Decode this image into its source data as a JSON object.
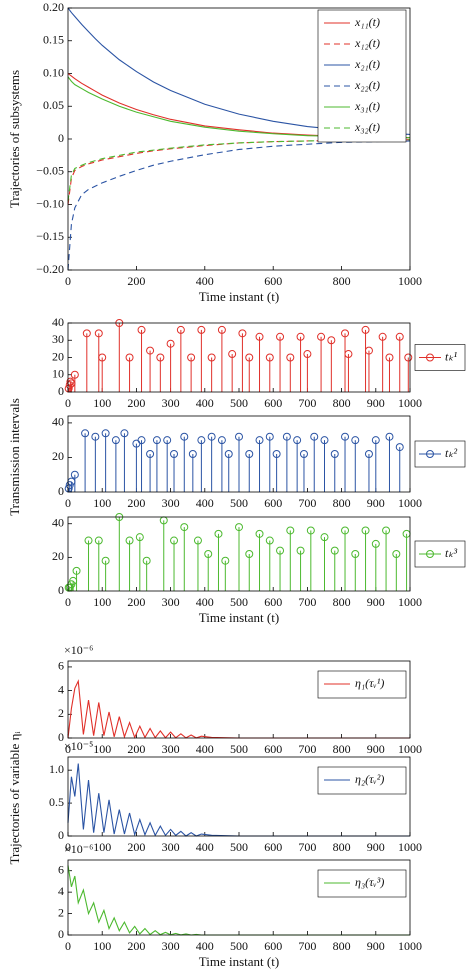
{
  "chart_data": [
    {
      "type": "line",
      "ylabel": "Trajectories of subsystems",
      "xlabel": "Time instant (t)",
      "legend": "upper right",
      "xlim": [
        0,
        1000
      ],
      "xticks": [
        0,
        200,
        400,
        600,
        800,
        1000
      ],
      "ylim": [
        -0.2,
        0.2
      ],
      "yticks": [
        {
          "value": 0.2,
          "label": "0.20"
        },
        0.15,
        {
          "value": 0.1,
          "label": "0.10"
        },
        0.05,
        0,
        {
          "value": -0.05,
          "label": "−0.05"
        },
        {
          "value": -0.1,
          "label": "−0.10"
        },
        {
          "value": -0.15,
          "label": "−0.15"
        },
        {
          "value": -0.2,
          "label": "−0.20"
        }
      ],
      "x": [
        0,
        10,
        20,
        40,
        60,
        80,
        100,
        150,
        200,
        250,
        300,
        400,
        500,
        600,
        700,
        800,
        900,
        1000
      ],
      "series": [
        {
          "name": "x₁₁(t)",
          "color": "#e0302a",
          "dashed": false,
          "values": [
            0.1,
            0.096,
            0.092,
            0.085,
            0.079,
            0.073,
            0.067,
            0.055,
            0.045,
            0.037,
            0.03,
            0.02,
            0.014,
            0.009,
            0.006,
            0.004,
            0.003,
            0.002
          ]
        },
        {
          "name": "x₁₂(t)",
          "color": "#e0302a",
          "dashed": true,
          "values": [
            -0.1,
            -0.06,
            -0.048,
            -0.042,
            -0.038,
            -0.035,
            -0.032,
            -0.027,
            -0.022,
            -0.018,
            -0.015,
            -0.01,
            -0.006,
            -0.004,
            -0.003,
            -0.002,
            -0.001,
            -0.001
          ]
        },
        {
          "name": "x₂₁(t)",
          "color": "#2b54a4",
          "dashed": false,
          "values": [
            0.2,
            0.193,
            0.187,
            0.175,
            0.164,
            0.153,
            0.143,
            0.121,
            0.103,
            0.087,
            0.074,
            0.053,
            0.038,
            0.027,
            0.019,
            0.014,
            0.01,
            0.007
          ]
        },
        {
          "name": "x₂₂(t)",
          "color": "#2b54a4",
          "dashed": true,
          "values": [
            -0.2,
            -0.13,
            -0.105,
            -0.085,
            -0.077,
            -0.072,
            -0.067,
            -0.057,
            -0.048,
            -0.04,
            -0.034,
            -0.024,
            -0.016,
            -0.011,
            -0.008,
            -0.005,
            -0.004,
            -0.003
          ]
        },
        {
          "name": "x₃₁(t)",
          "color": "#4cb92f",
          "dashed": false,
          "values": [
            0.095,
            0.088,
            0.083,
            0.077,
            0.071,
            0.066,
            0.061,
            0.05,
            0.041,
            0.034,
            0.027,
            0.018,
            0.012,
            0.008,
            0.005,
            0.004,
            0.002,
            0.002
          ]
        },
        {
          "name": "x₃₂(t)",
          "color": "#4cb92f",
          "dashed": true,
          "values": [
            -0.095,
            -0.055,
            -0.045,
            -0.04,
            -0.036,
            -0.033,
            -0.03,
            -0.025,
            -0.02,
            -0.017,
            -0.014,
            -0.009,
            -0.006,
            -0.004,
            -0.003,
            -0.002,
            -0.001,
            -0.001
          ]
        }
      ]
    },
    {
      "type": "stem",
      "ylabel": "Transmission intervals",
      "legend": "outside right",
      "xlim": [
        0,
        1000
      ],
      "xticks": [
        0,
        100,
        200,
        300,
        400,
        500,
        600,
        700,
        800,
        900,
        1000
      ],
      "ylim": [
        0,
        40
      ],
      "yticks": [
        0,
        10,
        20,
        30,
        40
      ],
      "series": [
        {
          "name": "tₖ¹",
          "color": "#e0302a",
          "x": [
            2,
            5,
            7,
            10,
            20,
            55,
            90,
            100,
            150,
            180,
            215,
            240,
            270,
            300,
            330,
            360,
            390,
            420,
            450,
            480,
            510,
            530,
            560,
            590,
            620,
            650,
            680,
            700,
            740,
            770,
            810,
            820,
            870,
            880,
            920,
            940,
            970,
            995
          ],
          "values": [
            2,
            4,
            6,
            5,
            10,
            34,
            34,
            20,
            40,
            20,
            36,
            24,
            20,
            28,
            36,
            20,
            36,
            20,
            36,
            22,
            34,
            20,
            32,
            20,
            32,
            20,
            32,
            22,
            32,
            30,
            34,
            22,
            36,
            24,
            32,
            20,
            32,
            20
          ]
        }
      ]
    },
    {
      "type": "stem",
      "legend": "outside right",
      "xlim": [
        0,
        1000
      ],
      "xticks": [
        0,
        100,
        200,
        300,
        400,
        500,
        600,
        700,
        800,
        900,
        1000
      ],
      "ylim": [
        0,
        44
      ],
      "yticks": [
        0,
        20,
        40
      ],
      "series": [
        {
          "name": "tₖ²",
          "color": "#2b54a4",
          "x": [
            2,
            5,
            10,
            20,
            50,
            80,
            110,
            140,
            165,
            200,
            215,
            240,
            260,
            290,
            310,
            340,
            365,
            390,
            420,
            450,
            470,
            500,
            530,
            560,
            590,
            610,
            640,
            670,
            690,
            720,
            750,
            780,
            810,
            840,
            880,
            900,
            940,
            970
          ],
          "values": [
            2,
            4,
            6,
            10,
            34,
            32,
            34,
            30,
            34,
            28,
            30,
            22,
            30,
            30,
            22,
            32,
            22,
            30,
            32,
            30,
            22,
            32,
            22,
            30,
            32,
            22,
            32,
            30,
            22,
            32,
            30,
            22,
            32,
            30,
            22,
            30,
            32,
            26
          ]
        }
      ]
    },
    {
      "type": "stem",
      "xlabel": "Time instant (t)",
      "legend": "outside right",
      "xlim": [
        0,
        1000
      ],
      "xticks": [
        0,
        100,
        200,
        300,
        400,
        500,
        600,
        700,
        800,
        900,
        1000
      ],
      "ylim": [
        0,
        44
      ],
      "yticks": [
        0,
        20,
        40
      ],
      "series": [
        {
          "name": "tₖ³",
          "color": "#4cb92f",
          "x": [
            2,
            5,
            10,
            15,
            25,
            60,
            90,
            110,
            150,
            180,
            210,
            230,
            280,
            310,
            340,
            380,
            410,
            440,
            460,
            500,
            530,
            560,
            590,
            620,
            650,
            680,
            710,
            750,
            780,
            810,
            840,
            870,
            900,
            930,
            960,
            990
          ],
          "values": [
            2,
            2,
            4,
            6,
            12,
            30,
            30,
            18,
            44,
            30,
            32,
            18,
            42,
            30,
            38,
            30,
            22,
            34,
            18,
            38,
            22,
            34,
            30,
            24,
            36,
            24,
            36,
            32,
            24,
            36,
            22,
            36,
            28,
            36,
            22,
            34
          ]
        }
      ]
    },
    {
      "type": "line",
      "ylabel": "Trajectories of variable ηᵢ",
      "multiplier": "×10⁻⁶",
      "legend": "upper right",
      "xlim": [
        0,
        1000
      ],
      "xticks": [
        0,
        100,
        200,
        300,
        400,
        500,
        600,
        700,
        800,
        900,
        1000
      ],
      "ylim": [
        0,
        6.5
      ],
      "yticks": [
        0,
        2,
        4,
        6
      ],
      "x": [
        0,
        10,
        20,
        30,
        45,
        60,
        75,
        90,
        105,
        120,
        135,
        150,
        165,
        180,
        195,
        210,
        225,
        240,
        255,
        270,
        285,
        300,
        315,
        330,
        345,
        360,
        375,
        390,
        420,
        500,
        1000
      ],
      "series": [
        {
          "name": "η₁(τᵥ¹)",
          "color": "#e0302a",
          "dashed": false,
          "values": [
            0,
            2.5,
            4.2,
            4.8,
            0.3,
            3.2,
            0.2,
            3.0,
            0.2,
            2.2,
            0.1,
            1.8,
            0.1,
            1.3,
            0.05,
            1.0,
            0.05,
            0.8,
            0.03,
            0.6,
            0.02,
            0.5,
            0.02,
            0.35,
            0.01,
            0.25,
            0.01,
            0.15,
            0.05,
            0,
            0
          ]
        }
      ]
    },
    {
      "type": "line",
      "multiplier": "×10⁻⁵",
      "legend": "upper right",
      "xlim": [
        0,
        1000
      ],
      "xticks": [
        0,
        100,
        200,
        300,
        400,
        500,
        600,
        700,
        800,
        900,
        1000
      ],
      "ylim": [
        0,
        1.2
      ],
      "yticks": [
        0,
        0.5,
        {
          "value": 1,
          "label": "1.0"
        }
      ],
      "x": [
        0,
        10,
        20,
        30,
        45,
        60,
        75,
        90,
        105,
        120,
        135,
        150,
        165,
        180,
        195,
        210,
        225,
        240,
        255,
        270,
        285,
        300,
        315,
        330,
        345,
        360,
        375,
        390,
        420,
        500,
        1000
      ],
      "series": [
        {
          "name": "η₂(τᵥ²)",
          "color": "#2b54a4",
          "dashed": false,
          "values": [
            0.2,
            0.9,
            0.6,
            1.1,
            0.1,
            0.85,
            0.05,
            0.65,
            0.05,
            0.55,
            0.03,
            0.4,
            0.03,
            0.35,
            0.02,
            0.25,
            0.02,
            0.2,
            0.01,
            0.15,
            0.01,
            0.1,
            0.01,
            0.07,
            0,
            0.05,
            0,
            0.03,
            0.01,
            0,
            0
          ]
        }
      ]
    },
    {
      "type": "line",
      "xlabel": "Time instant (t)",
      "multiplier": "×10⁻⁶",
      "legend": "upper right",
      "xlim": [
        0,
        1000
      ],
      "xticks": [
        0,
        100,
        200,
        300,
        400,
        500,
        600,
        700,
        800,
        900,
        1000
      ],
      "ylim": [
        0,
        7
      ],
      "yticks": [
        0,
        2,
        4,
        6
      ],
      "x": [
        0,
        10,
        20,
        30,
        45,
        60,
        75,
        90,
        105,
        120,
        135,
        150,
        165,
        180,
        195,
        210,
        225,
        240,
        255,
        270,
        285,
        300,
        315,
        330,
        345,
        360,
        375,
        390,
        420,
        500,
        1000
      ],
      "series": [
        {
          "name": "η₃(τᵥ³)",
          "color": "#4cb92f",
          "dashed": false,
          "values": [
            6.5,
            4.5,
            5.5,
            3.0,
            4.2,
            2.0,
            3.0,
            1.2,
            2.3,
            0.6,
            1.6,
            0.4,
            1.2,
            0.2,
            0.8,
            0.1,
            0.6,
            0.05,
            0.4,
            0.03,
            0.25,
            0.02,
            0.15,
            0.01,
            0.1,
            0,
            0.05,
            0,
            0,
            0,
            0
          ]
        }
      ]
    }
  ]
}
